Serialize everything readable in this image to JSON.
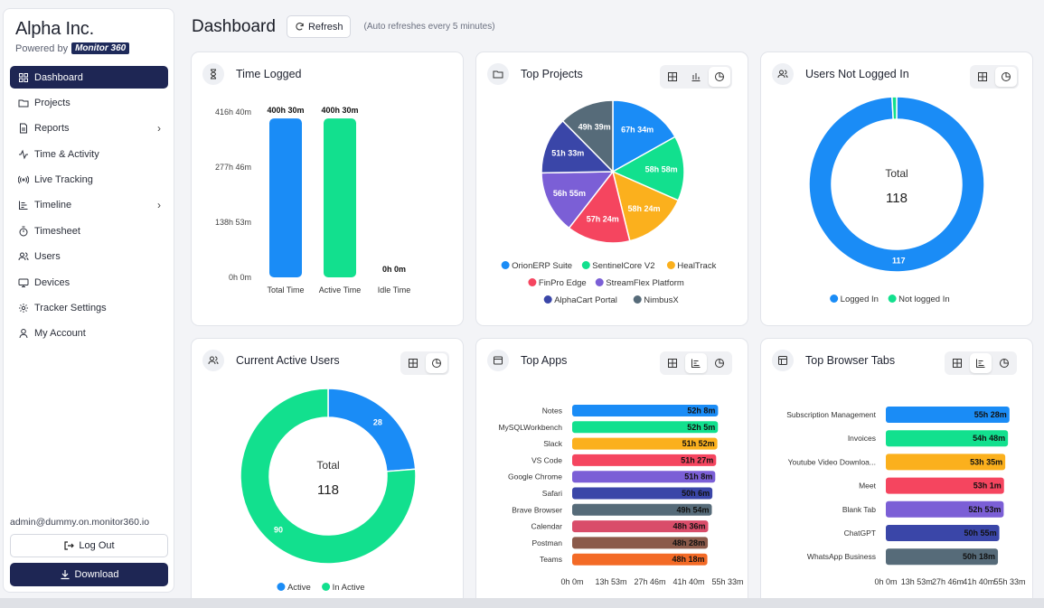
{
  "sidebar": {
    "brand_name": "Alpha Inc.",
    "powered_by": "Powered by",
    "logo_text": "Monitor 360",
    "items": [
      {
        "label": "Dashboard",
        "icon": "grid-icon"
      },
      {
        "label": "Projects",
        "icon": "folder-icon"
      },
      {
        "label": "Reports",
        "icon": "report-icon"
      },
      {
        "label": "Time & Activity",
        "icon": "activity-icon"
      },
      {
        "label": "Live Tracking",
        "icon": "broadcast-icon"
      },
      {
        "label": "Timeline",
        "icon": "timeline-icon"
      },
      {
        "label": "Timesheet",
        "icon": "stopwatch-icon"
      },
      {
        "label": "Users",
        "icon": "users-icon"
      },
      {
        "label": "Devices",
        "icon": "monitor-icon"
      },
      {
        "label": "Tracker Settings",
        "icon": "gear-icon"
      },
      {
        "label": "My Account",
        "icon": "user-icon"
      }
    ],
    "email": "admin@dummy.on.monitor360.io",
    "logout_label": "Log Out",
    "download_label": "Download"
  },
  "header": {
    "title": "Dashboard",
    "refresh_label": "Refresh",
    "auto_note": "(Auto refreshes every 5 minutes)"
  },
  "cards": {
    "time_logged": {
      "title": "Time Logged",
      "chart_data": {
        "type": "bar",
        "categories": [
          "Total Time",
          "Active Time",
          "Idle Time"
        ],
        "values": [
          400.5,
          400.5,
          0
        ],
        "data_labels": [
          "400h 30m",
          "400h 30m",
          "0h 0m"
        ],
        "y_ticks": [
          "0h 0m",
          "138h 53m",
          "277h 46m",
          "416h 40m"
        ],
        "ylim": [
          0,
          416.67
        ],
        "colors": [
          "#1a8cf6",
          "#12e08e",
          "#f5a623"
        ]
      }
    },
    "top_projects": {
      "title": "Top Projects",
      "chart_data": {
        "type": "pie",
        "labels": [
          "OrionERP Suite",
          "SentinelCore V2",
          "HealTrack",
          "FinPro Edge",
          "StreamFlex Platform",
          "AlphaCart Portal",
          "NimbusX"
        ],
        "values": [
          67.57,
          58.97,
          58.4,
          57.4,
          56.92,
          51.55,
          49.65
        ],
        "data_labels": [
          "67h 34m",
          "58h 58m",
          "58h 24m",
          "57h 24m",
          "56h 55m",
          "51h 33m",
          "49h 39m"
        ],
        "colors": [
          "#1a8cf6",
          "#12e08e",
          "#fbb01d",
          "#f5455f",
          "#7b5fd6",
          "#3a46a8",
          "#566b79"
        ]
      }
    },
    "users_not_logged_in": {
      "title": "Users Not Logged In",
      "total_label": "Total",
      "total_value": "118",
      "chart_data": {
        "type": "pie",
        "labels": [
          "Logged In",
          "Not logged In"
        ],
        "values": [
          117,
          1
        ],
        "data_labels": [
          "117",
          ""
        ],
        "colors": [
          "#1a8cf6",
          "#12e08e"
        ]
      }
    },
    "current_active_users": {
      "title": "Current Active Users",
      "total_label": "Total",
      "total_value": "118",
      "chart_data": {
        "type": "pie",
        "labels": [
          "Active",
          "In Active"
        ],
        "values": [
          28,
          90
        ],
        "data_labels": [
          "28",
          "90"
        ],
        "colors": [
          "#1a8cf6",
          "#12e08e"
        ]
      }
    },
    "top_apps": {
      "title": "Top Apps",
      "chart_data": {
        "type": "bar",
        "orientation": "horizontal",
        "categories": [
          "Notes",
          "MySQLWorkbench",
          "Slack",
          "VS Code",
          "Google Chrome",
          "Safari",
          "Brave Browser",
          "Calendar",
          "Postman",
          "Teams"
        ],
        "values": [
          52.13,
          52.08,
          51.87,
          51.45,
          51.13,
          50.1,
          49.9,
          48.6,
          48.47,
          48.3
        ],
        "data_labels": [
          "52h 8m",
          "52h 5m",
          "51h 52m",
          "51h 27m",
          "51h 8m",
          "50h 6m",
          "49h 54m",
          "48h 36m",
          "48h 28m",
          "48h 18m"
        ],
        "x_ticks": [
          "0h 0m",
          "13h 53m",
          "27h 46m",
          "41h 40m",
          "55h 33m"
        ],
        "xlim": [
          0,
          55.55
        ],
        "colors": [
          "#1a8cf6",
          "#12e08e",
          "#fbb01d",
          "#f5455f",
          "#7b5fd6",
          "#3a46a8",
          "#566b79",
          "#d94d6a",
          "#8b5a4a",
          "#f36a26"
        ]
      }
    },
    "top_browser_tabs": {
      "title": "Top Browser Tabs",
      "chart_data": {
        "type": "bar",
        "orientation": "horizontal",
        "categories": [
          "Subscription Management",
          "Invoices",
          "Youtube Video Downloa...",
          "Meet",
          "Blank Tab",
          "ChatGPT",
          "WhatsApp Business"
        ],
        "values": [
          55.47,
          54.8,
          53.58,
          53.02,
          52.88,
          50.92,
          50.3
        ],
        "data_labels": [
          "55h 28m",
          "54h 48m",
          "53h 35m",
          "53h 1m",
          "52h 53m",
          "50h 55m",
          "50h 18m"
        ],
        "x_ticks": [
          "0h 0m",
          "13h 53m",
          "27h 46m",
          "41h 40m",
          "55h 33m"
        ],
        "xlim": [
          0,
          55.55
        ],
        "colors": [
          "#1a8cf6",
          "#12e08e",
          "#fbb01d",
          "#f5455f",
          "#7b5fd6",
          "#3a46a8",
          "#566b79"
        ]
      }
    }
  }
}
